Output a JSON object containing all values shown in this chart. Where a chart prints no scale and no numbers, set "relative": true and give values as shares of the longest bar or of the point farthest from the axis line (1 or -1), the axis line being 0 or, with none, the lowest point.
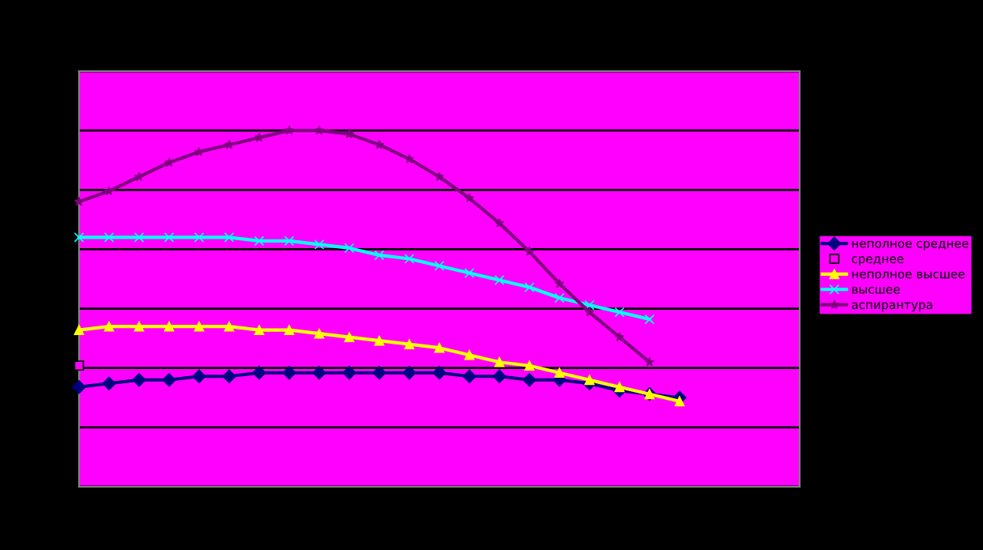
{
  "chart_data": {
    "type": "line",
    "relative": true,
    "grid": "y",
    "legend": "right",
    "line_style": "solid",
    "categories": [
      null,
      null,
      null,
      null,
      null,
      null,
      null,
      null,
      null,
      null,
      null,
      null,
      null,
      null,
      null,
      null,
      null,
      null,
      null,
      null,
      null,
      null,
      null,
      null,
      null
    ],
    "series": [
      {
        "name": "неполное среднее",
        "color": "#000080",
        "marker": "diamond",
        "values": [
          0.28,
          0.29,
          0.3,
          0.3,
          0.31,
          0.31,
          0.32,
          0.32,
          0.32,
          0.32,
          0.32,
          0.32,
          0.32,
          0.31,
          0.31,
          0.3,
          0.3,
          0.29,
          0.27,
          0.26,
          0.25,
          null,
          null,
          null,
          null
        ]
      },
      {
        "name": "среднее",
        "color": "#ff00ff",
        "marker": "square",
        "values": [
          0.34,
          null,
          null,
          null,
          null,
          null,
          null,
          null,
          null,
          null,
          null,
          null,
          null,
          null,
          null,
          null,
          null,
          null,
          null,
          null,
          null,
          null,
          null,
          null,
          null
        ]
      },
      {
        "name": "неполное высшее",
        "color": "#ffff00",
        "marker": "triangle",
        "values": [
          0.44,
          0.45,
          0.45,
          0.45,
          0.45,
          0.45,
          0.44,
          0.44,
          0.43,
          0.42,
          0.41,
          0.4,
          0.39,
          0.37,
          0.35,
          0.34,
          0.32,
          0.3,
          0.28,
          0.26,
          0.24,
          null,
          null,
          null,
          null
        ]
      },
      {
        "name": "высшее",
        "color": "#00ffff",
        "marker": "cross",
        "values": [
          0.7,
          0.7,
          0.7,
          0.7,
          0.7,
          0.7,
          0.69,
          0.69,
          0.68,
          0.67,
          0.65,
          0.64,
          0.62,
          0.6,
          0.58,
          0.56,
          0.53,
          0.51,
          0.49,
          0.47,
          null,
          null,
          null,
          null,
          null
        ]
      },
      {
        "name": "аспирантура",
        "color": "#800080",
        "marker": "star",
        "values": [
          0.8,
          0.83,
          0.87,
          0.91,
          0.94,
          0.96,
          0.98,
          1.0,
          1.0,
          0.99,
          0.96,
          0.92,
          0.87,
          0.81,
          0.74,
          0.66,
          0.57,
          0.49,
          0.42,
          0.35,
          null,
          null,
          null,
          null,
          null
        ]
      }
    ]
  }
}
